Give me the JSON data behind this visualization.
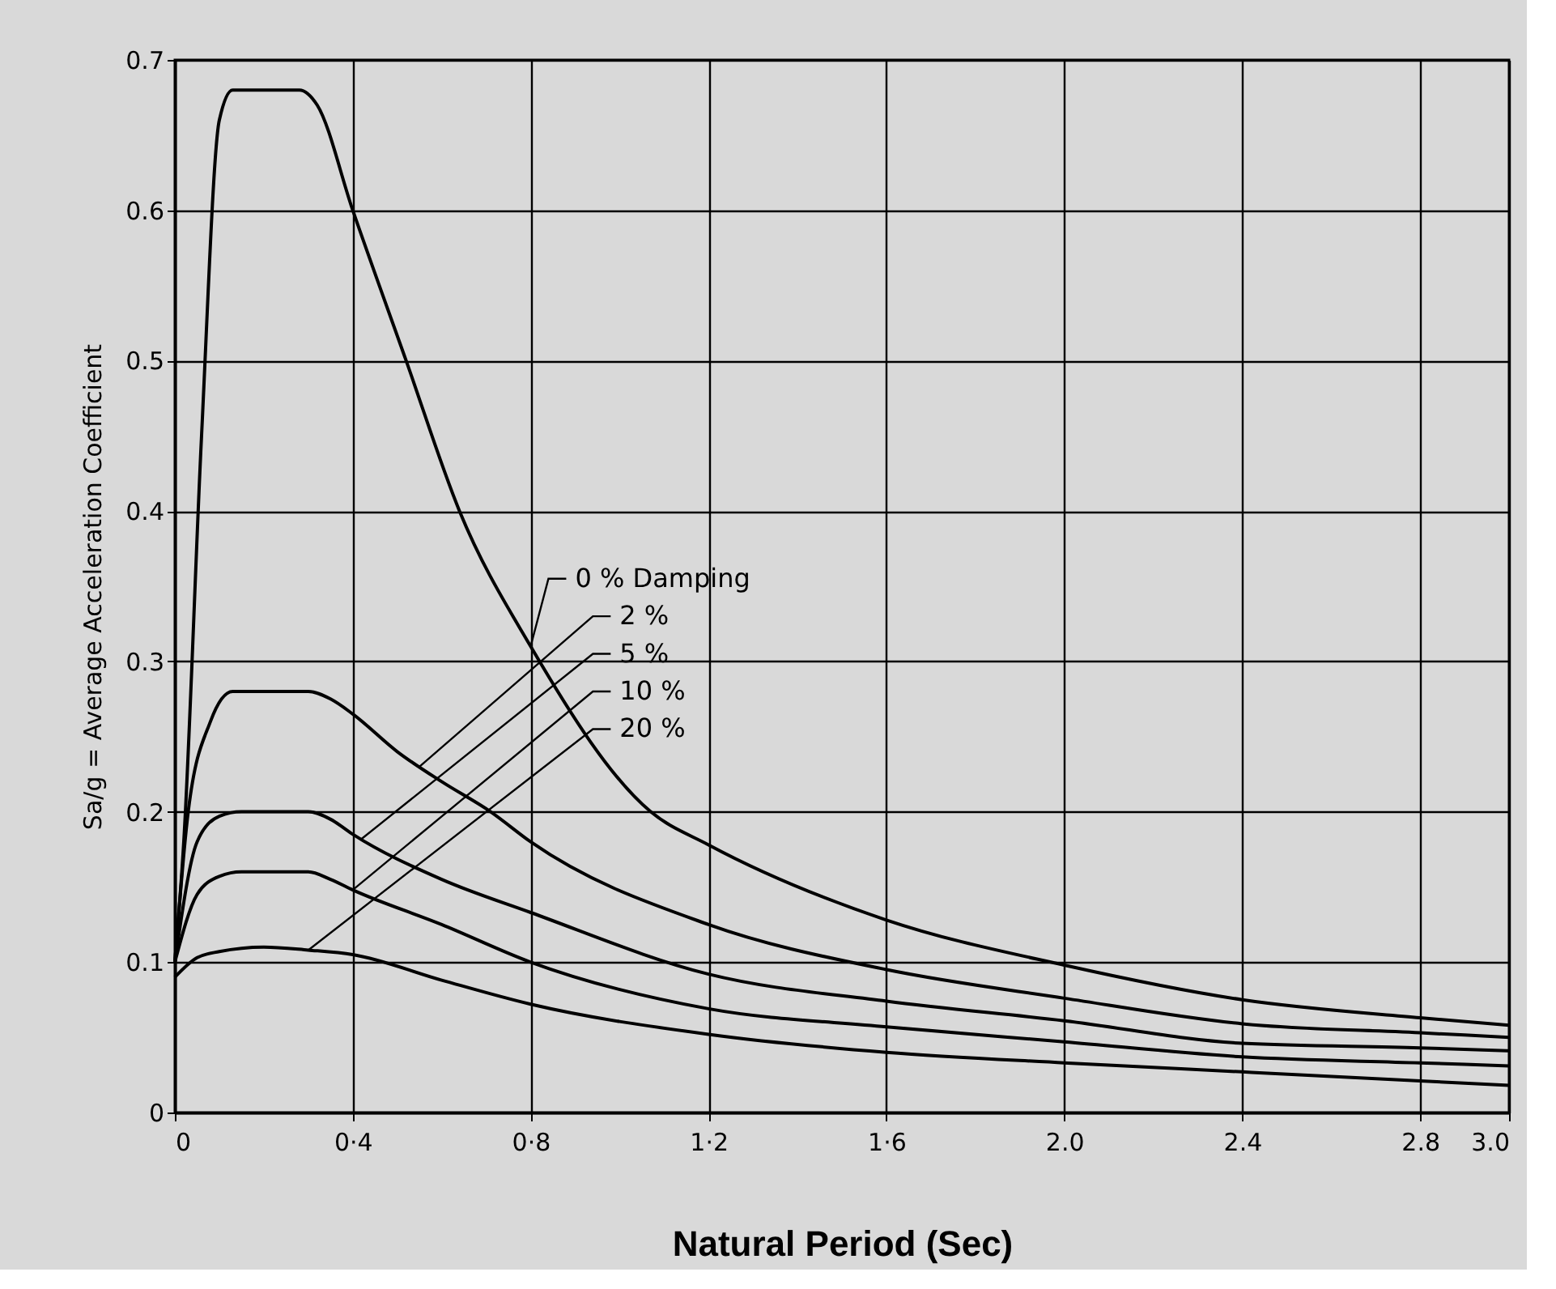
{
  "chart_data": {
    "type": "line",
    "xlabel": "Natural Period (Sec)",
    "ylabel": "Sa/g = Average Acceleration Coefficient",
    "xlim": [
      0,
      3.0
    ],
    "ylim": [
      0,
      0.7
    ],
    "xticks": [
      0,
      {
        "value": 0.4,
        "label": "0·4"
      },
      {
        "value": 0.8,
        "label": "0·8"
      },
      {
        "value": 1.2,
        "label": "1·2"
      },
      {
        "value": 1.6,
        "label": "1·6"
      },
      {
        "value": 2.0,
        "label": "2.0"
      },
      {
        "value": 2.4,
        "label": "2.4"
      },
      {
        "value": 2.8,
        "label": "2.8"
      },
      {
        "value": 3.0,
        "label": "3.0"
      }
    ],
    "yticks": [
      0,
      0.1,
      0.2,
      0.3,
      0.4,
      0.5,
      0.6,
      0.7
    ],
    "grid": true,
    "legend": false,
    "marker": "none",
    "line_style": "solid",
    "series": [
      {
        "name": "0 % Damping",
        "color": "#000000",
        "x": [
          0,
          0.02,
          0.06,
          0.1,
          0.13,
          0.2,
          0.28,
          0.32,
          0.4,
          0.52,
          0.64,
          0.8,
          1.07,
          1.2,
          1.6,
          2.0,
          2.4,
          2.8,
          3.0
        ],
        "values": [
          0.1,
          0.18,
          0.45,
          0.66,
          0.68,
          0.68,
          0.68,
          0.67,
          0.6,
          0.5,
          0.4,
          0.31,
          0.2,
          0.178,
          0.128,
          0.098,
          0.075,
          0.063,
          0.058
        ]
      },
      {
        "name": "2 %",
        "color": "#000000",
        "x": [
          0,
          0.03,
          0.08,
          0.13,
          0.2,
          0.3,
          0.35,
          0.4,
          0.5,
          0.6,
          0.71,
          0.8,
          1.2,
          1.6,
          2.0,
          2.4,
          2.8,
          3.0
        ],
        "values": [
          0.1,
          0.2,
          0.26,
          0.28,
          0.28,
          0.28,
          0.275,
          0.265,
          0.24,
          0.22,
          0.2,
          0.18,
          0.125,
          0.095,
          0.076,
          0.059,
          0.053,
          0.05
        ]
      },
      {
        "name": "5 %",
        "color": "#000000",
        "x": [
          0,
          0.05,
          0.1,
          0.15,
          0.3,
          0.35,
          0.4,
          0.6,
          0.8,
          1.2,
          1.6,
          2.0,
          2.4,
          2.8,
          3.0
        ],
        "values": [
          0.1,
          0.18,
          0.197,
          0.2,
          0.2,
          0.195,
          0.185,
          0.155,
          0.133,
          0.092,
          0.074,
          0.061,
          0.046,
          0.043,
          0.041
        ]
      },
      {
        "name": "10 %",
        "color": "#000000",
        "x": [
          0,
          0.05,
          0.1,
          0.15,
          0.3,
          0.35,
          0.4,
          0.6,
          0.8,
          1.2,
          1.6,
          2.0,
          2.4,
          2.8,
          3.0
        ],
        "values": [
          0.1,
          0.145,
          0.157,
          0.16,
          0.16,
          0.155,
          0.148,
          0.125,
          0.1,
          0.069,
          0.057,
          0.047,
          0.037,
          0.033,
          0.031
        ]
      },
      {
        "name": "20 %",
        "color": "#000000",
        "x": [
          0,
          0.05,
          0.1,
          0.2,
          0.3,
          0.4,
          0.6,
          0.8,
          1.2,
          1.6,
          2.0,
          2.4,
          2.8,
          3.0
        ],
        "values": [
          0.09,
          0.103,
          0.107,
          0.11,
          0.108,
          0.105,
          0.088,
          0.072,
          0.052,
          0.04,
          0.033,
          0.027,
          0.021,
          0.018
        ]
      }
    ]
  }
}
